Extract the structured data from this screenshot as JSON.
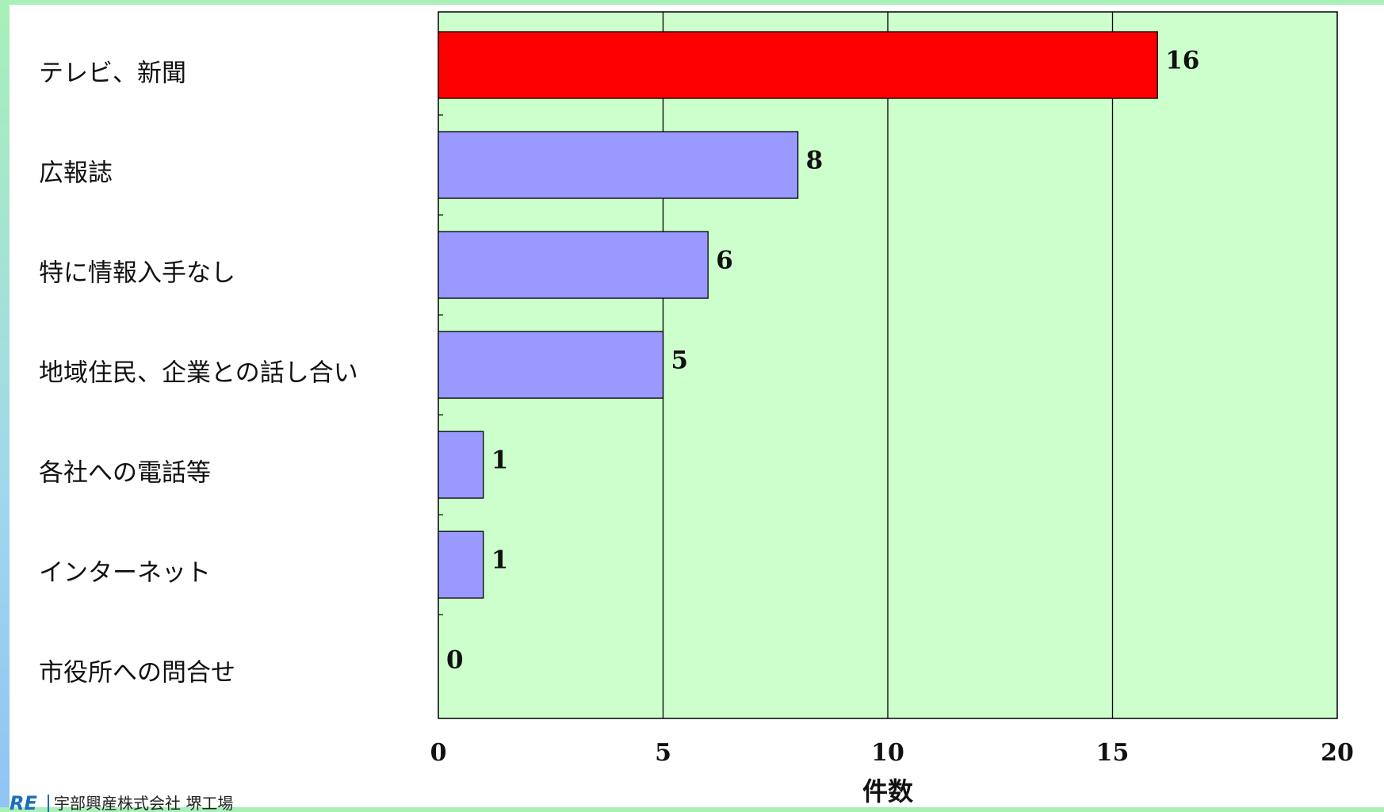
{
  "chart_data": {
    "type": "bar",
    "orientation": "horizontal",
    "categories": [
      "テレビ、新聞",
      "広報誌",
      "特に情報入手なし",
      "地域住民、企業との話し合い",
      "各社への電話等",
      "インターネット",
      "市役所への問合せ"
    ],
    "values": [
      16,
      8,
      6,
      5,
      1,
      1,
      0
    ],
    "bar_colors": [
      "#ff0000",
      "#9999ff",
      "#9999ff",
      "#9999ff",
      "#9999ff",
      "#9999ff",
      "#9999ff"
    ],
    "plot_background": "#ccffcc",
    "xlabel": "件数",
    "xlim": [
      0,
      20
    ],
    "xticks": [
      0,
      5,
      10,
      15,
      20
    ],
    "grid": true,
    "data_labels": true
  },
  "footer": {
    "logo": "RE",
    "company": "宇部興産株式会社 堺工場"
  }
}
